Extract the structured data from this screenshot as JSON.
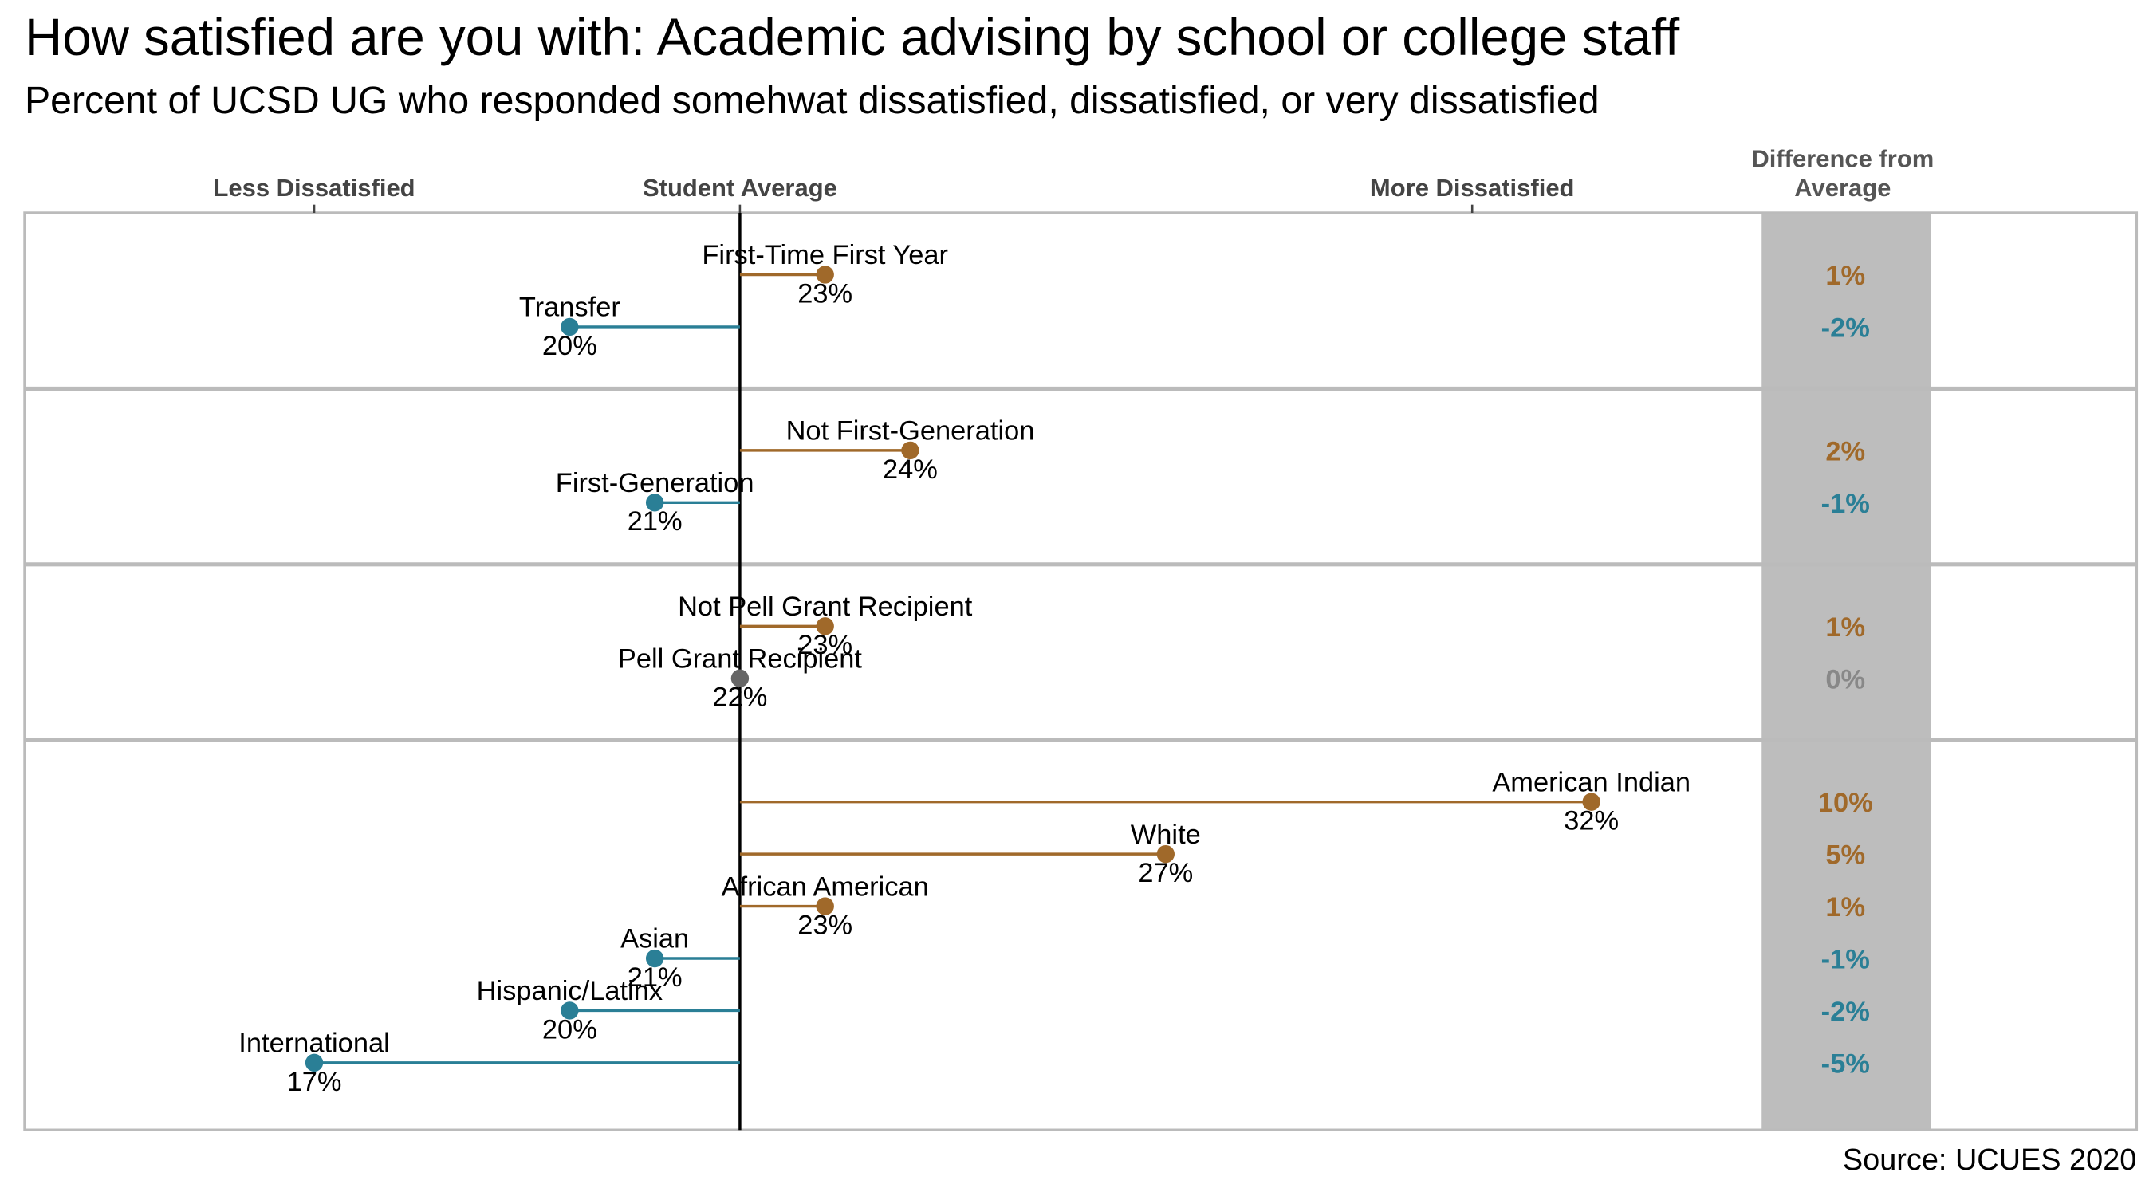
{
  "chart_data": {
    "type": "lollipop",
    "title": "How satisfied are you with: Academic advising by school or college staff",
    "subtitle": "Percent of UCSD UG who responded somehwat dissatisfied, dissatisfied, or very dissatisfied",
    "difference_header": [
      "Difference from",
      "Average"
    ],
    "source": "Source: UCUES 2020",
    "xlim": [
      13.6,
      34
    ],
    "xticks": [
      {
        "value": 17,
        "label": "Less Dissatisfied"
      },
      {
        "value": 22,
        "label": "Student Average"
      },
      {
        "value": 30.6,
        "label": "More Dissatisfied"
      }
    ],
    "groups": [
      {
        "categories": [
          "First-Time First Year",
          "Transfer"
        ],
        "values": [
          23,
          20
        ],
        "value_labels": [
          "23%",
          "20%"
        ],
        "differences": [
          1,
          -2
        ],
        "difference_labels": [
          "1%",
          "-2%"
        ],
        "colors": [
          "#a0692a",
          "#2a7f96"
        ]
      },
      {
        "categories": [
          "Not First-Generation",
          "First-Generation"
        ],
        "values": [
          24,
          21
        ],
        "value_labels": [
          "24%",
          "21%"
        ],
        "differences": [
          2,
          -1
        ],
        "difference_labels": [
          "2%",
          "-1%"
        ],
        "colors": [
          "#a0692a",
          "#2a7f96"
        ]
      },
      {
        "categories": [
          "Not Pell Grant Recipient",
          "Pell Grant Recipient"
        ],
        "values": [
          23,
          22
        ],
        "value_labels": [
          "23%",
          "22%"
        ],
        "differences": [
          1,
          0
        ],
        "difference_labels": [
          "1%",
          "0%"
        ],
        "colors": [
          "#a0692a",
          "#666666"
        ]
      },
      {
        "categories": [
          "American Indian",
          "White",
          "African American",
          "Asian",
          "Hispanic/Latinx",
          "International"
        ],
        "values": [
          32,
          27,
          23,
          21,
          20,
          17
        ],
        "value_labels": [
          "32%",
          "27%",
          "23%",
          "21%",
          "20%",
          "17%"
        ],
        "differences": [
          10,
          5,
          1,
          -1,
          -2,
          -5
        ],
        "difference_labels": [
          "10%",
          "5%",
          "1%",
          "-1%",
          "-2%",
          "-5%"
        ],
        "colors": [
          "#a0692a",
          "#a0692a",
          "#a0692a",
          "#2a7f96",
          "#2a7f96",
          "#2a7f96"
        ]
      }
    ]
  }
}
